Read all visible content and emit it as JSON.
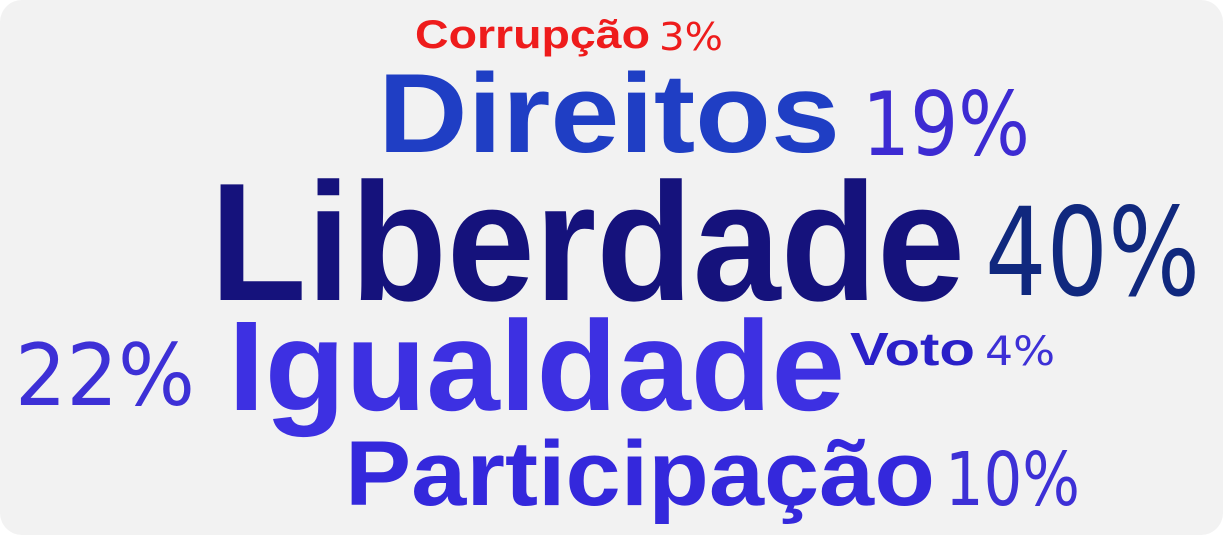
{
  "words": [
    {
      "word": "Corrupção",
      "share": "3%"
    },
    {
      "word": "Direitos",
      "share": "19%"
    },
    {
      "word": "Liberdade",
      "share": "40%"
    },
    {
      "word": "Igualdade",
      "share": "22%"
    },
    {
      "word": "Voto",
      "share": "4%"
    },
    {
      "word": "Participação",
      "share": "10%"
    }
  ]
}
